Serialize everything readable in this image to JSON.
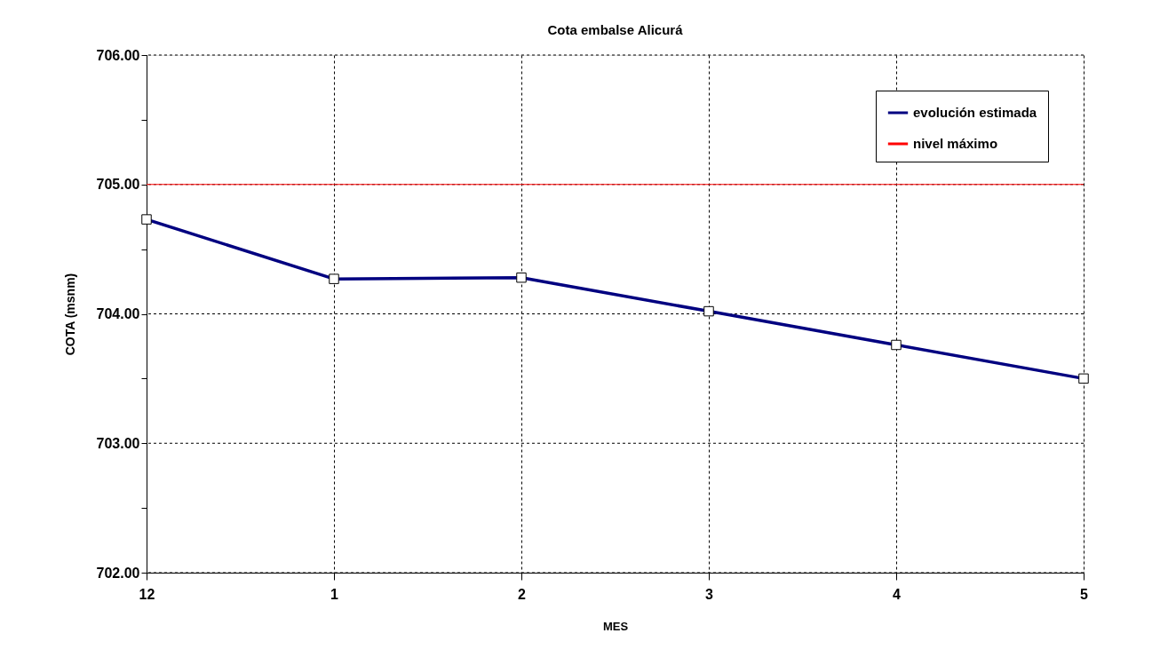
{
  "chart_data": {
    "type": "line",
    "title": "Cota embalse Alicurá",
    "xlabel": "MES",
    "ylabel": "COTA (msnm)",
    "categories": [
      "12",
      "1",
      "2",
      "3",
      "4",
      "5"
    ],
    "series": [
      {
        "name": "evolución estimada",
        "color": "#000080",
        "values": [
          704.73,
          704.27,
          704.28,
          704.02,
          703.76,
          703.5
        ]
      }
    ],
    "ref_lines": [
      {
        "axis": "y",
        "value": 705,
        "label": "nivel máximo",
        "color": "#ff0000",
        "line_style": "solid"
      }
    ],
    "ylim": [
      702,
      706
    ],
    "yticks": [
      {
        "value": 702,
        "label": "702.00"
      },
      {
        "value": 702.5,
        "label": null
      },
      {
        "value": 703,
        "label": "703.00"
      },
      {
        "value": 703.5,
        "label": null
      },
      {
        "value": 704,
        "label": "704.00"
      },
      {
        "value": 704.5,
        "label": null
      },
      {
        "value": 705,
        "label": "705.00"
      },
      {
        "value": 705.5,
        "label": null
      },
      {
        "value": 706,
        "label": "706.00"
      }
    ],
    "grid": true,
    "legend": "top right",
    "marker": "square",
    "line_style": "solid"
  }
}
